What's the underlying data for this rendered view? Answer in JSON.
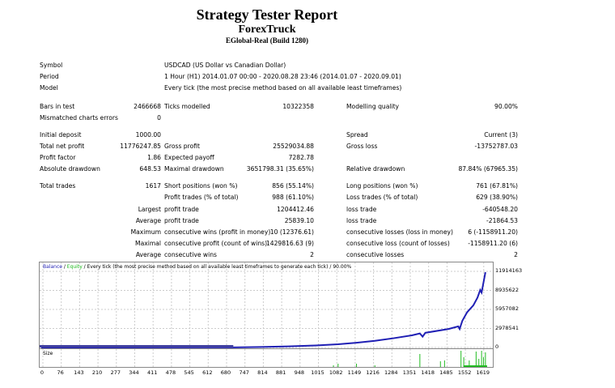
{
  "header": {
    "title": "Strategy Tester Report",
    "expert": "ForexTruck",
    "server": "EGlobal-Real (Build 1280)"
  },
  "info": [
    {
      "label": "Symbol",
      "value": "USDCAD (US Dollar vs Canadian Dollar)"
    },
    {
      "label": "Period",
      "value": "1 Hour (H1) 2014.01.07 00:00 - 2020.08.28 23:46 (2014.01.07 - 2020.09.01)"
    },
    {
      "label": "Model",
      "value": "Every tick (the most precise method based on all available least timeframes)"
    }
  ],
  "rows": [
    [
      "Bars in test",
      "2466668",
      "Ticks modelled",
      "10322358",
      "Modelling quality",
      "90.00%"
    ],
    [
      "Mismatched charts errors",
      "0",
      "",
      "",
      "",
      ""
    ],
    [
      "Initial deposit",
      "1000.00",
      "",
      "",
      "Spread",
      "Current (3)"
    ],
    [
      "Total net profit",
      "11776247.85",
      "Gross profit",
      "25529034.88",
      "Gross loss",
      "-13752787.03"
    ],
    [
      "Profit factor",
      "1.86",
      "Expected payoff",
      "7282.78",
      "",
      ""
    ],
    [
      "Absolute drawdown",
      "648.53",
      "Maximal drawdown",
      "3651798.31 (35.65%)",
      "Relative drawdown",
      "87.84% (67965.35)"
    ],
    [
      "Total trades",
      "1617",
      "Short positions (won %)",
      "856 (55.14%)",
      "Long positions (won %)",
      "761 (67.81%)"
    ],
    [
      "",
      "",
      "Profit trades (% of total)",
      "988 (61.10%)",
      "Loss trades (% of total)",
      "629 (38.90%)"
    ],
    [
      "",
      "Largest",
      "profit trade",
      "1204412.46",
      "loss trade",
      "-640548.20"
    ],
    [
      "",
      "Average",
      "profit trade",
      "25839.10",
      "loss trade",
      "-21864.53"
    ],
    [
      "",
      "Maximum",
      "consecutive wins (profit in money)",
      "10 (12376.61)",
      "consecutive losses (loss in money)",
      "6 (-1158911.20)"
    ],
    [
      "",
      "Maximal",
      "consecutive profit (count of wins)",
      "1429816.63 (9)",
      "consecutive loss (count of losses)",
      "-1158911.20 (6)"
    ],
    [
      "",
      "Average",
      "consecutive wins",
      "2",
      "consecutive losses",
      "2"
    ]
  ],
  "chart_data": {
    "type": "line",
    "legend": {
      "balance": "Balance",
      "sep1": " / ",
      "equity": "Equity",
      "rest": " / Every tick (the most precise method based on all available least timeframes to generate each tick) / 90.00%"
    },
    "size_label": "Size",
    "colors": {
      "balance": "#1f1fb4",
      "equity": "#22bb22",
      "size": "#22bb22"
    },
    "y_ticks": [
      "11914163",
      "8935622",
      "5957082",
      "2978541",
      "0"
    ],
    "ylim": [
      0,
      11914163
    ],
    "x_ticks": [
      "0",
      "76",
      "143",
      "210",
      "277",
      "344",
      "411",
      "478",
      "545",
      "612",
      "680",
      "747",
      "814",
      "881",
      "948",
      "1015",
      "1082",
      "1149",
      "1216",
      "1284",
      "1351",
      "1418",
      "1485",
      "1552",
      "1619"
    ],
    "xlim": [
      0,
      1640
    ],
    "grid": true,
    "balance": [
      [
        0,
        1000
      ],
      [
        700,
        20000
      ],
      [
        800,
        80000
      ],
      [
        900,
        180000
      ],
      [
        1000,
        320000
      ],
      [
        1082,
        500000
      ],
      [
        1149,
        750000
      ],
      [
        1216,
        1050000
      ],
      [
        1284,
        1450000
      ],
      [
        1351,
        1900000
      ],
      [
        1380,
        2200000
      ],
      [
        1390,
        1700000
      ],
      [
        1400,
        2300000
      ],
      [
        1485,
        2900000
      ],
      [
        1520,
        3300000
      ],
      [
        1525,
        2900000
      ],
      [
        1535,
        4200000
      ],
      [
        1552,
        5500000
      ],
      [
        1575,
        6600000
      ],
      [
        1590,
        7800000
      ],
      [
        1600,
        9000000
      ],
      [
        1605,
        8600000
      ],
      [
        1619,
        11776247
      ]
    ],
    "size": [
      [
        1065,
        0.1
      ],
      [
        1082,
        0.2
      ],
      [
        1149,
        0.2
      ],
      [
        1216,
        0.1
      ],
      [
        1380,
        0.8
      ],
      [
        1455,
        0.35
      ],
      [
        1470,
        0.4
      ],
      [
        1530,
        1
      ],
      [
        1540,
        0.6
      ],
      [
        1560,
        0.4
      ],
      [
        1585,
        0.95
      ],
      [
        1595,
        0.5
      ],
      [
        1605,
        1
      ],
      [
        1612,
        0.6
      ],
      [
        1619,
        0.9
      ]
    ]
  }
}
